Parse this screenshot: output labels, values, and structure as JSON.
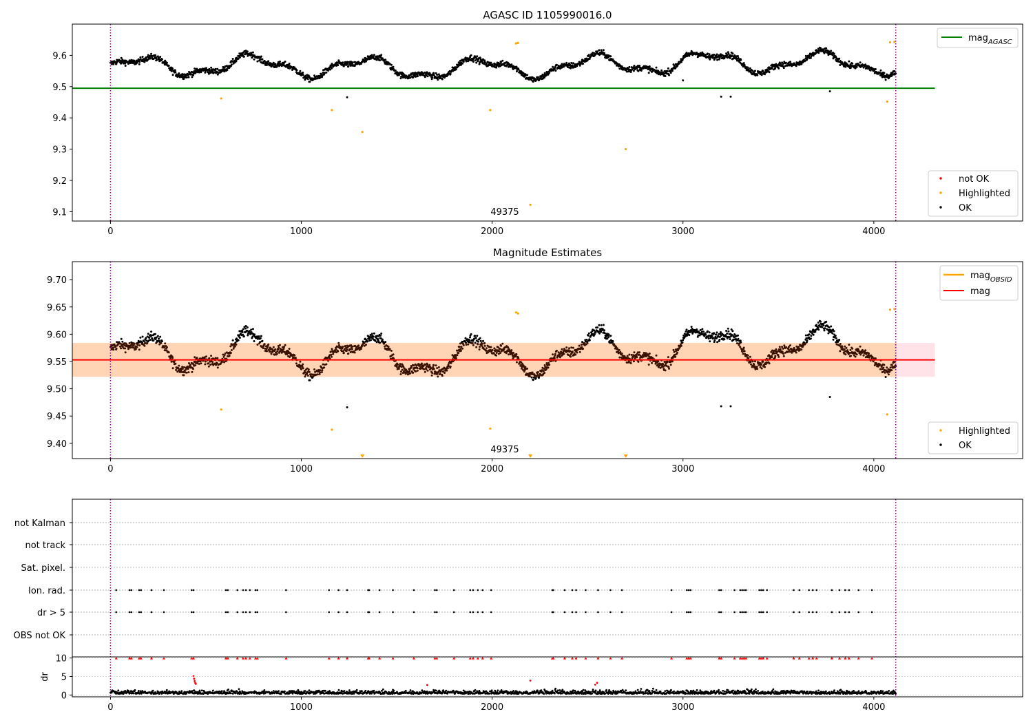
{
  "figure": {
    "obsid_label": "49375"
  },
  "chart_data": [
    {
      "type": "scatter",
      "title": "AGASC ID 1105990016.0",
      "xlim": [
        -200,
        4780
      ],
      "ylim": [
        9.07,
        9.7
      ],
      "xticks": [
        0,
        1000,
        2000,
        3000,
        4000
      ],
      "yticks": [
        9.1,
        9.2,
        9.3,
        9.4,
        9.5,
        9.6
      ],
      "obs_bounds": [
        0,
        4115
      ],
      "obsid_label": "49375",
      "line": {
        "name": "mag_AGASC",
        "y": 9.495,
        "x": [
          -200,
          4320
        ],
        "color": "#008000"
      },
      "legend_lines": [
        {
          "base": "mag",
          "sub": "AGASC",
          "color": "#008000"
        }
      ],
      "legend_scatter": [
        {
          "label": "not OK",
          "color": "#ff0000"
        },
        {
          "label": "Highlighted",
          "color": "#ffa500"
        },
        {
          "label": "OK",
          "color": "#000000"
        }
      ],
      "highlighted": [
        [
          580,
          9.462
        ],
        [
          1160,
          9.425
        ],
        [
          1320,
          9.355
        ],
        [
          1990,
          9.425
        ],
        [
          2125,
          9.638
        ],
        [
          2135,
          9.64
        ],
        [
          2200,
          9.122
        ],
        [
          2700,
          9.3
        ],
        [
          4070,
          9.452
        ],
        [
          4085,
          9.642
        ],
        [
          4108,
          9.643
        ]
      ]
    },
    {
      "type": "scatter",
      "title": "Magnitude Estimates",
      "xlim": [
        -200,
        4780
      ],
      "ylim": [
        9.372,
        9.733
      ],
      "xticks": [
        0,
        1000,
        2000,
        3000,
        4000
      ],
      "yticks": [
        9.4,
        9.45,
        9.5,
        9.55,
        9.6,
        9.65,
        9.7
      ],
      "ytick_labels": [
        "9.40",
        "9.45",
        "9.50",
        "9.55",
        "9.60",
        "9.65",
        "9.70"
      ],
      "obs_bounds": [
        0,
        4115
      ],
      "obsid_label": "49375",
      "mag_line": {
        "name": "mag",
        "y": 9.553,
        "x": [
          -200,
          4320
        ],
        "color": "#ff0000"
      },
      "mag_obsid_band": {
        "low": 9.522,
        "high": 9.584,
        "x": [
          -200,
          4120
        ]
      },
      "mag_band": {
        "low": 9.522,
        "high": 9.584,
        "x": [
          -200,
          4320
        ]
      },
      "legend_lines": [
        {
          "base": "mag",
          "sub": "OBSID",
          "color": "#ffa500"
        },
        {
          "base": "mag",
          "sub": "",
          "color": "#ff0000"
        }
      ],
      "legend_scatter": [
        {
          "label": "Highlighted",
          "color": "#ffa500"
        },
        {
          "label": "OK",
          "color": "#000000"
        }
      ],
      "highlighted": [
        [
          580,
          9.462
        ],
        [
          1160,
          9.425
        ],
        [
          1990,
          9.427
        ],
        [
          2125,
          9.64
        ],
        [
          2135,
          9.638
        ],
        [
          4070,
          9.453
        ],
        [
          4085,
          9.645
        ],
        [
          4108,
          9.646
        ]
      ],
      "below_range": [
        1320,
        2200,
        2700
      ]
    },
    {
      "type": "scatter",
      "categories": [
        "not Kalman",
        "not track",
        "Sat. pixel.",
        "Ion. rad.",
        "dr > 5",
        "OBS not OK"
      ],
      "flag_times": [
        30,
        100,
        110,
        150,
        160,
        215,
        280,
        425,
        435,
        605,
        615,
        665,
        695,
        710,
        730,
        760,
        770,
        920,
        1145,
        1195,
        1240,
        1350,
        1355,
        1410,
        1480,
        1590,
        1700,
        1710,
        1800,
        1885,
        1900,
        1925,
        1950,
        1995,
        2315,
        2320,
        2380,
        2420,
        2440,
        2490,
        2555,
        2620,
        2680,
        2940,
        3020,
        3030,
        3040,
        3190,
        3200,
        3270,
        3300,
        3310,
        3320,
        3330,
        3400,
        3410,
        3420,
        3440,
        3580,
        3610,
        3660,
        3680,
        3700,
        3780,
        3820,
        3850,
        3870,
        3920,
        3990
      ],
      "dr_panel": {
        "ylabel": "dr",
        "ylim": [
          -0.5,
          10.3
        ],
        "yticks": [
          0,
          5,
          10
        ],
        "clipped_value": 10,
        "outliers": [
          [
            435,
            5.1
          ],
          [
            438,
            4.4
          ],
          [
            441,
            3.8
          ],
          [
            444,
            3.3
          ],
          [
            447,
            3.0
          ],
          [
            1660,
            2.7
          ],
          [
            2200,
            3.9
          ],
          [
            2540,
            2.8
          ],
          [
            2550,
            3.3
          ]
        ]
      }
    }
  ]
}
